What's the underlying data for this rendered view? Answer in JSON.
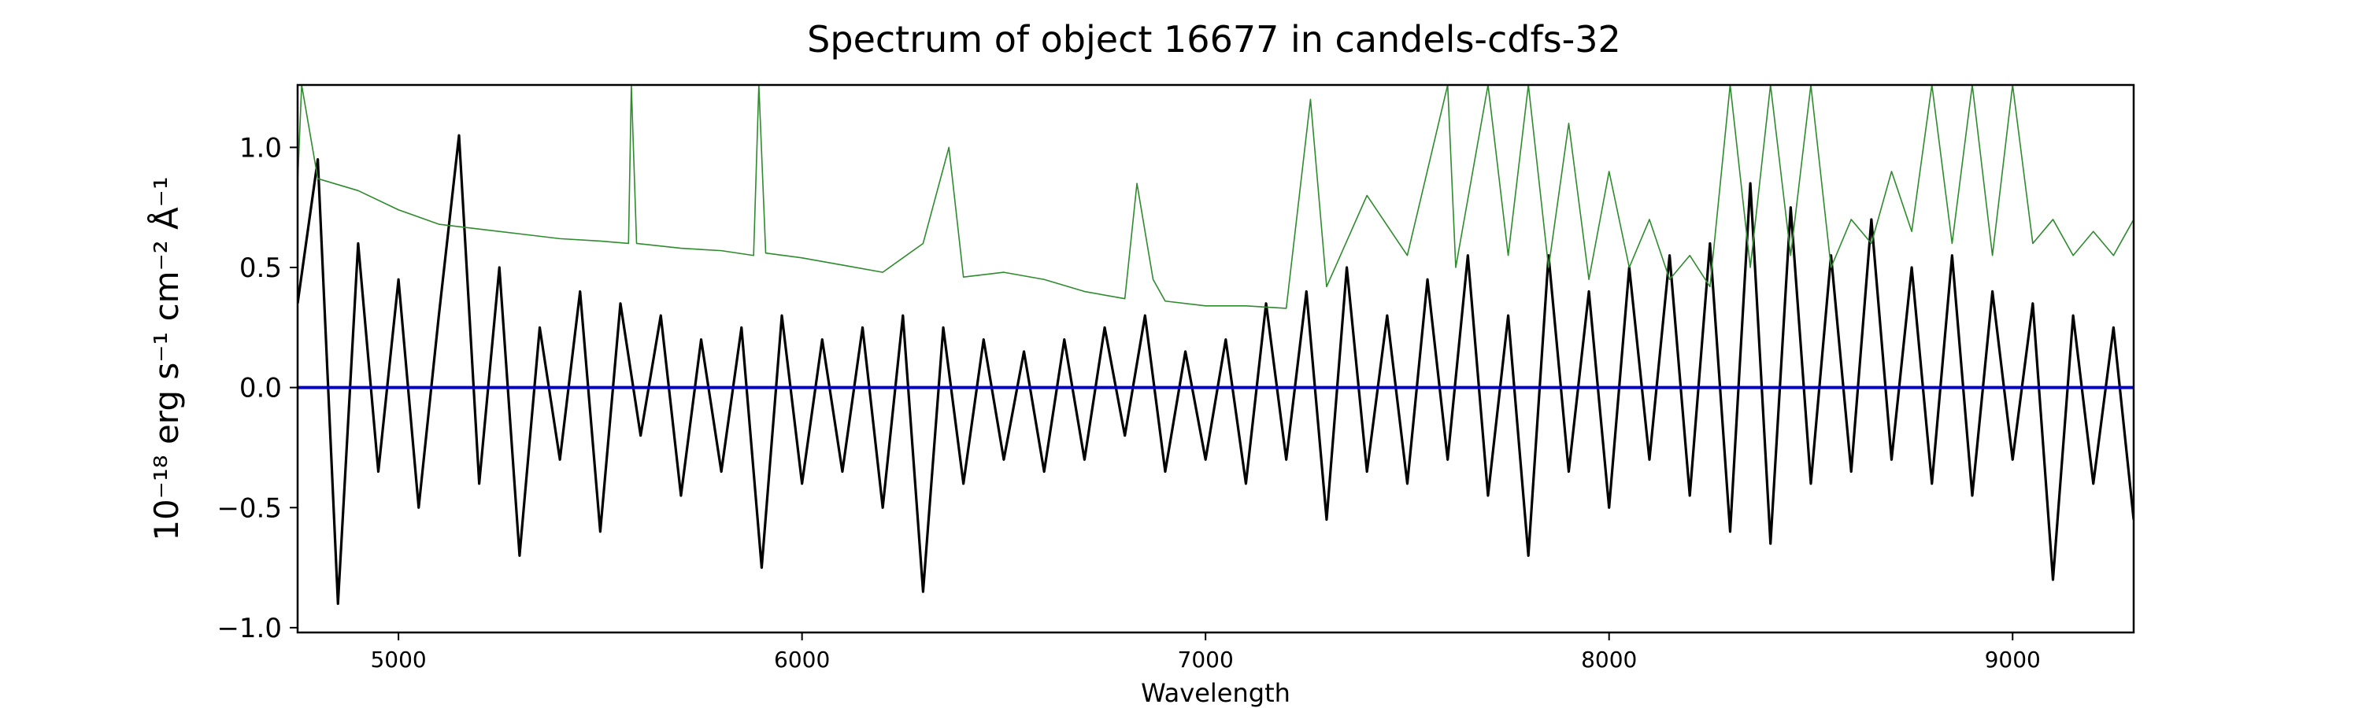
{
  "chart_data": {
    "type": "line",
    "title": "Spectrum of object 16677 in candels-cdfs-32",
    "xlabel": "Wavelength",
    "ylabel": "10⁻¹⁸ erg s⁻¹ cm⁻² Å⁻¹",
    "xlim": [
      4750,
      9300
    ],
    "ylim": [
      -1.02,
      1.26
    ],
    "xticks": [
      5000,
      6000,
      7000,
      8000,
      9000
    ],
    "xtick_labels": [
      "5000",
      "6000",
      "7000",
      "8000",
      "9000"
    ],
    "yticks": [
      -1.0,
      -0.5,
      0.0,
      0.5,
      1.0
    ],
    "ytick_labels": [
      "−1.0",
      "−0.5",
      "0.0",
      "0.5",
      "1.0"
    ],
    "grid": false,
    "series": [
      {
        "color": "#000000",
        "x": [
          4750,
          4800,
          4850,
          4900,
          4950,
          5000,
          5050,
          5100,
          5150,
          5200,
          5250,
          5300,
          5350,
          5400,
          5450,
          5500,
          5550,
          5600,
          5650,
          5700,
          5750,
          5800,
          5850,
          5900,
          5950,
          6000,
          6050,
          6100,
          6150,
          6200,
          6250,
          6300,
          6350,
          6400,
          6450,
          6500,
          6550,
          6600,
          6650,
          6700,
          6750,
          6800,
          6850,
          6900,
          6950,
          7000,
          7050,
          7100,
          7150,
          7200,
          7250,
          7300,
          7350,
          7400,
          7450,
          7500,
          7550,
          7600,
          7650,
          7700,
          7750,
          7800,
          7850,
          7900,
          7950,
          8000,
          8050,
          8100,
          8150,
          8200,
          8250,
          8300,
          8350,
          8400,
          8450,
          8500,
          8550,
          8600,
          8650,
          8700,
          8750,
          8800,
          8850,
          8900,
          8950,
          9000,
          9050,
          9100,
          9150,
          9200,
          9250,
          9300
        ],
        "y": [
          0.35,
          0.95,
          -0.9,
          0.6,
          -0.35,
          0.45,
          -0.5,
          0.3,
          1.05,
          -0.4,
          0.5,
          -0.7,
          0.25,
          -0.3,
          0.4,
          -0.6,
          0.35,
          -0.2,
          0.3,
          -0.45,
          0.2,
          -0.35,
          0.25,
          -0.75,
          0.3,
          -0.4,
          0.2,
          -0.35,
          0.25,
          -0.5,
          0.3,
          -0.85,
          0.25,
          -0.4,
          0.2,
          -0.3,
          0.15,
          -0.35,
          0.2,
          -0.3,
          0.25,
          -0.2,
          0.3,
          -0.35,
          0.15,
          -0.3,
          0.2,
          -0.4,
          0.35,
          -0.3,
          0.4,
          -0.55,
          0.5,
          -0.35,
          0.3,
          -0.4,
          0.45,
          -0.3,
          0.55,
          -0.45,
          0.3,
          -0.7,
          0.55,
          -0.35,
          0.4,
          -0.5,
          0.5,
          -0.3,
          0.55,
          -0.45,
          0.6,
          -0.6,
          0.85,
          -0.65,
          0.75,
          -0.4,
          0.55,
          -0.35,
          0.7,
          -0.3,
          0.5,
          -0.4,
          0.55,
          -0.45,
          0.4,
          -0.3,
          0.35,
          -0.8,
          0.3,
          -0.4,
          0.25,
          -0.55
        ]
      },
      {
        "color": "#2e8b2e",
        "x": [
          4750,
          4760,
          4800,
          4900,
          5000,
          5100,
          5200,
          5300,
          5400,
          5500,
          5570,
          5577,
          5590,
          5700,
          5800,
          5880,
          5893,
          5910,
          6000,
          6100,
          6200,
          6300,
          6364,
          6400,
          6500,
          6600,
          6700,
          6800,
          6830,
          6870,
          6900,
          7000,
          7100,
          7200,
          7260,
          7300,
          7400,
          7500,
          7600,
          7620,
          7700,
          7750,
          7800,
          7850,
          7900,
          7950,
          8000,
          8050,
          8100,
          8150,
          8200,
          8250,
          8300,
          8350,
          8400,
          8450,
          8500,
          8550,
          8600,
          8650,
          8700,
          8750,
          8800,
          8850,
          8900,
          8950,
          9000,
          9050,
          9100,
          9150,
          9200,
          9250,
          9300
        ],
        "y": [
          0.85,
          1.26,
          0.87,
          0.82,
          0.74,
          0.68,
          0.66,
          0.64,
          0.62,
          0.61,
          0.6,
          1.26,
          0.6,
          0.58,
          0.57,
          0.55,
          1.26,
          0.56,
          0.54,
          0.51,
          0.48,
          0.6,
          1.0,
          0.46,
          0.48,
          0.45,
          0.4,
          0.37,
          0.85,
          0.45,
          0.36,
          0.34,
          0.34,
          0.33,
          1.2,
          0.42,
          0.8,
          0.55,
          1.26,
          0.5,
          1.26,
          0.55,
          1.26,
          0.5,
          1.1,
          0.45,
          0.9,
          0.5,
          0.7,
          0.45,
          0.55,
          0.42,
          1.26,
          0.5,
          1.26,
          0.55,
          1.26,
          0.5,
          0.7,
          0.6,
          0.9,
          0.65,
          1.26,
          0.6,
          1.26,
          0.55,
          1.26,
          0.6,
          0.7,
          0.55,
          0.65,
          0.55,
          0.7
        ]
      },
      {
        "color": "#0000cc",
        "x": [
          4750,
          9300
        ],
        "y": [
          0.0,
          0.0
        ]
      }
    ]
  }
}
